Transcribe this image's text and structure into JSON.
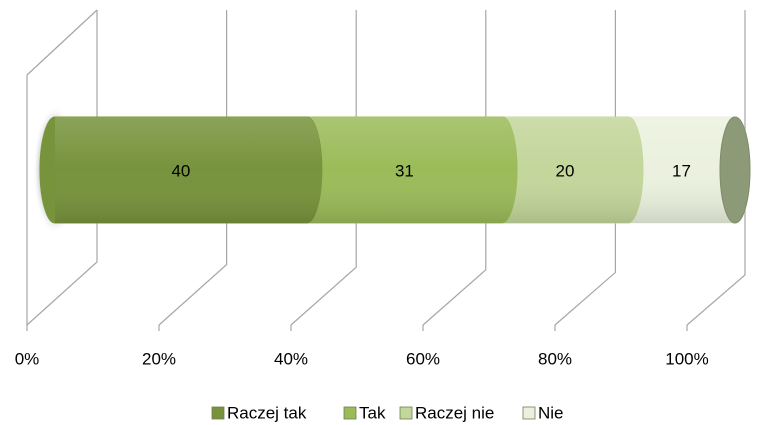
{
  "chart_data": {
    "type": "bar",
    "orientation": "horizontal",
    "stack": "percent",
    "shape": "cylinder",
    "series": [
      {
        "name": "Raczej tak",
        "color": "#77933c",
        "values": [
          40
        ]
      },
      {
        "name": "Tak",
        "color": "#9bbb59",
        "values": [
          31
        ]
      },
      {
        "name": "Raczej nie",
        "color": "#c3d69b",
        "values": [
          20
        ]
      },
      {
        "name": "Nie",
        "color": "#ebf1de",
        "values": [
          17
        ]
      }
    ],
    "xlim": [
      0,
      100
    ],
    "xticks": [
      {
        "value": 0,
        "label": "0%"
      },
      {
        "value": 20,
        "label": "20%"
      },
      {
        "value": 40,
        "label": "40%"
      },
      {
        "value": 60,
        "label": "60%"
      },
      {
        "value": 80,
        "label": "80%"
      },
      {
        "value": 100,
        "label": "100%"
      }
    ],
    "grid": true,
    "legend": "bottom"
  }
}
